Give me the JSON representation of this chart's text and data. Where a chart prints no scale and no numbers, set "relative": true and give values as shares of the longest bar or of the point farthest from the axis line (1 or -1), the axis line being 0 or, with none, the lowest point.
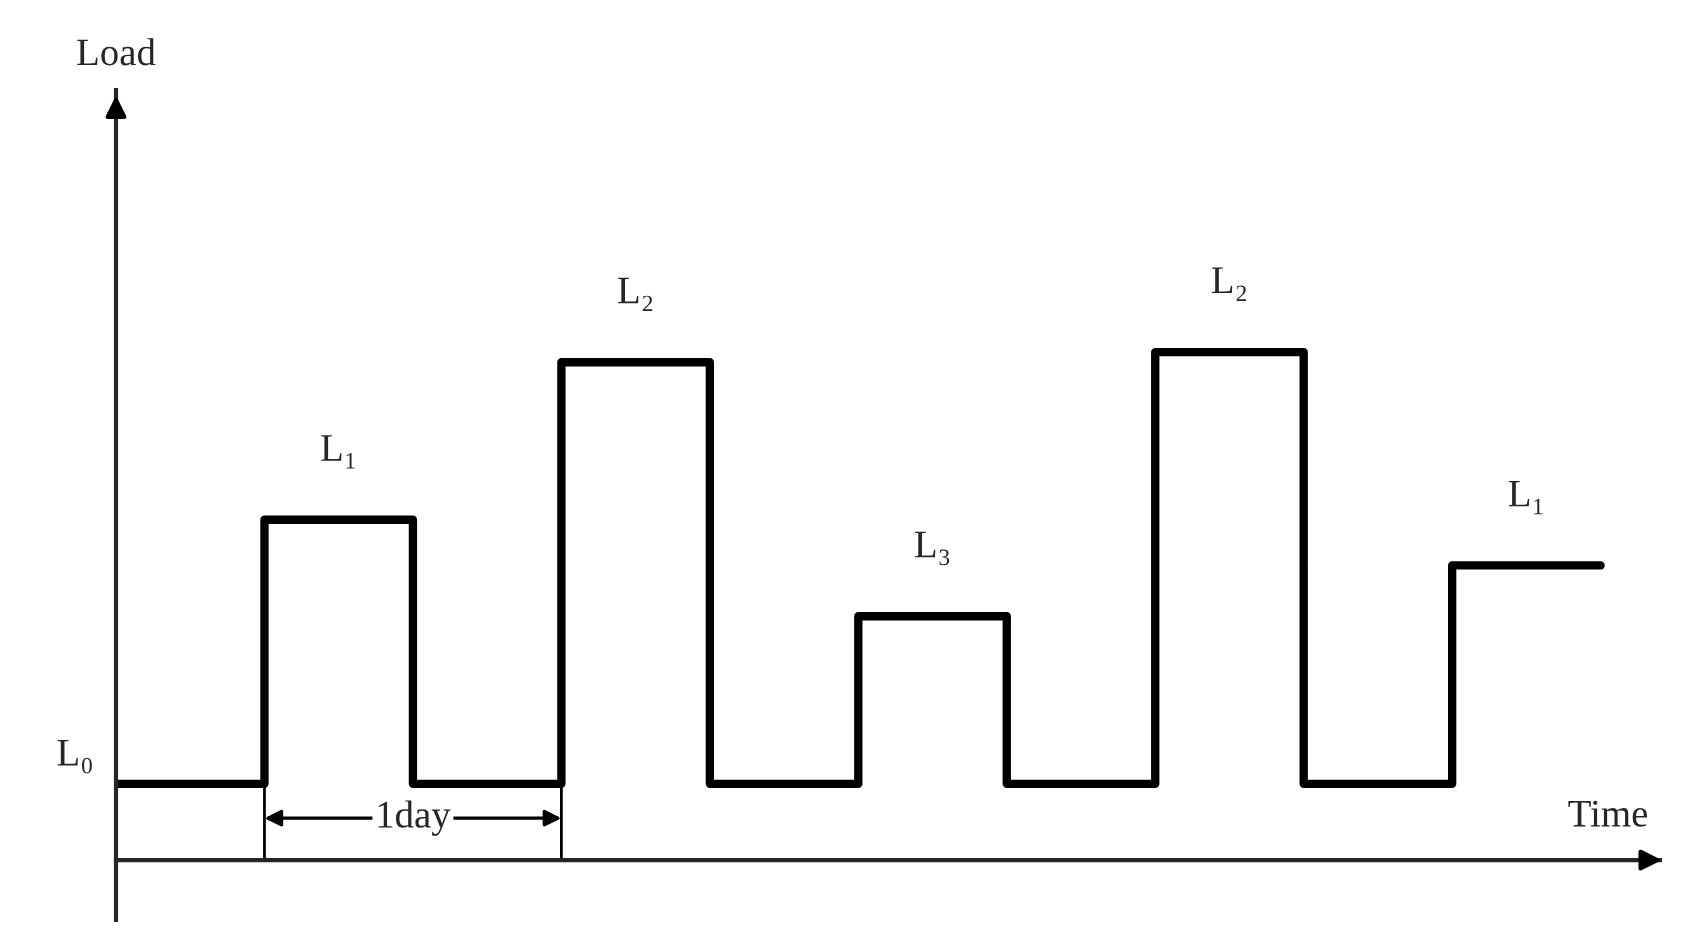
{
  "chart_data": {
    "type": "step",
    "relative": true,
    "xlabel": "Time",
    "categories": [
      null,
      null,
      null,
      null,
      null,
      null,
      null,
      null,
      null,
      null,
      null
    ],
    "series": [
      {
        "color": "#000000",
        "values": [
          0.15,
          0.67,
          0.15,
          0.98,
          0.15,
          0.48,
          0.15,
          1.0,
          0.15,
          0.58,
          0.58
        ]
      }
    ],
    "annotations": [
      "L₀",
      "L₁",
      "L₂",
      "L₃",
      "L₂",
      "L₁",
      "1day",
      "Load"
    ],
    "marker": "none",
    "line_style": "solid"
  }
}
